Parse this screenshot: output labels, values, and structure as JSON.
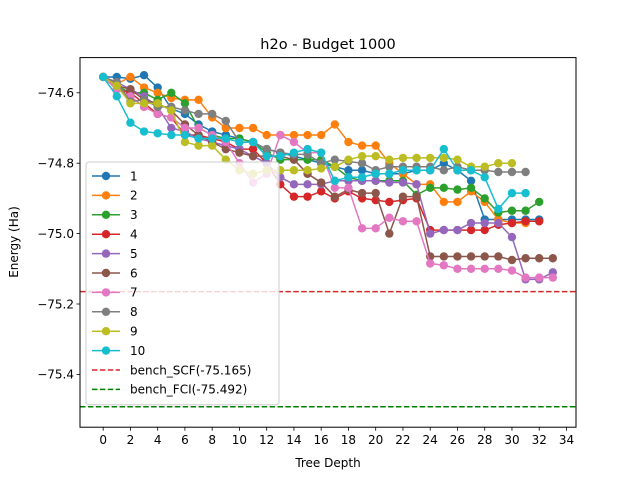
{
  "chart_data": {
    "type": "line",
    "title": "h2o - Budget  1000",
    "xlabel": "Tree Depth",
    "ylabel": "Energy (Ha)",
    "xlim": [
      -1.7,
      34.7
    ],
    "ylim": [
      -75.55,
      -74.5
    ],
    "xticks": [
      0,
      2,
      4,
      6,
      8,
      10,
      12,
      14,
      16,
      18,
      20,
      22,
      24,
      26,
      28,
      30,
      32,
      34
    ],
    "xtick_labels": [
      "0",
      "2",
      "4",
      "6",
      "8",
      "10",
      "12",
      "14",
      "16",
      "18",
      "20",
      "22",
      "24",
      "26",
      "28",
      "30",
      "32",
      "34"
    ],
    "yticks": [
      -74.6,
      -74.8,
      -75.0,
      -75.2,
      -75.4
    ],
    "ytick_labels": [
      "−74.6",
      "−74.8",
      "−75.0",
      "−75.2",
      "−75.4"
    ],
    "grid": false,
    "legend_position": "lower-left",
    "series": [
      {
        "name": "1",
        "color": "#1f77b4",
        "y": [
          -74.555,
          -74.555,
          -74.56,
          -74.55,
          -74.585,
          -74.645,
          -74.66,
          -74.69,
          -74.71,
          -74.72,
          -74.73,
          -74.74,
          -74.76,
          -74.77,
          -74.78,
          -74.79,
          -74.8,
          -74.81,
          -74.82,
          -74.82,
          -74.83,
          -74.83,
          -74.83,
          -74.82,
          -74.82,
          -74.8,
          -74.82,
          -74.85,
          -74.96,
          -74.96,
          -74.96,
          -74.96,
          -74.96
        ]
      },
      {
        "name": "2",
        "color": "#ff7f0e",
        "y": [
          -74.555,
          -74.575,
          -74.555,
          -74.585,
          -74.6,
          -74.615,
          -74.62,
          -74.62,
          -74.67,
          -74.7,
          -74.7,
          -74.7,
          -74.72,
          -74.72,
          -74.72,
          -74.72,
          -74.72,
          -74.69,
          -74.74,
          -74.75,
          -74.75,
          -74.8,
          -74.83,
          -74.86,
          -74.86,
          -74.91,
          -74.91,
          -74.88,
          -74.91,
          -74.96,
          -74.97,
          -74.97
        ]
      },
      {
        "name": "3",
        "color": "#2ca02c",
        "y": [
          -74.555,
          -74.58,
          -74.6,
          -74.6,
          -74.62,
          -74.6,
          -74.63,
          -74.7,
          -74.72,
          -74.73,
          -74.73,
          -74.74,
          -74.77,
          -74.79,
          -74.79,
          -74.79,
          -74.79,
          -74.81,
          -74.84,
          -74.85,
          -74.85,
          -74.85,
          -74.85,
          -74.89,
          -74.87,
          -74.87,
          -74.875,
          -74.87,
          -74.9,
          -74.94,
          -74.935,
          -74.935,
          -74.91
        ]
      },
      {
        "name": "4",
        "color": "#d62728",
        "y": [
          -74.555,
          -74.59,
          -74.6,
          -74.63,
          -74.66,
          -74.67,
          -74.72,
          -74.72,
          -74.73,
          -74.74,
          -74.76,
          -74.76,
          -74.8,
          -74.86,
          -74.895,
          -74.895,
          -74.88,
          -74.9,
          -74.88,
          -74.9,
          -74.905,
          -74.91,
          -74.905,
          -74.9,
          -74.99,
          -74.99,
          -74.99,
          -74.99,
          -74.99,
          -74.975,
          -74.97,
          -74.965,
          -74.965
        ]
      },
      {
        "name": "5",
        "color": "#9467bd",
        "y": [
          -74.555,
          -74.57,
          -74.59,
          -74.61,
          -74.64,
          -74.7,
          -74.71,
          -74.73,
          -74.74,
          -74.75,
          -74.76,
          -74.78,
          -74.8,
          -74.84,
          -74.86,
          -74.86,
          -74.86,
          -74.85,
          -74.85,
          -74.85,
          -74.85,
          -74.855,
          -74.855,
          -74.86,
          -75.0,
          -74.99,
          -74.99,
          -74.97,
          -74.97,
          -74.97,
          -75.01,
          -75.13,
          -75.13,
          -75.11
        ]
      },
      {
        "name": "6",
        "color": "#8c564b",
        "y": [
          -74.555,
          -74.58,
          -74.59,
          -74.62,
          -74.63,
          -74.65,
          -74.69,
          -74.72,
          -74.74,
          -74.76,
          -74.77,
          -74.78,
          -74.78,
          -74.78,
          -74.79,
          -74.83,
          -74.855,
          -74.895,
          -74.875,
          -74.885,
          -74.885,
          -75.0,
          -74.895,
          -74.895,
          -75.065,
          -75.065,
          -75.065,
          -75.065,
          -75.065,
          -75.065,
          -75.075,
          -75.07,
          -75.07,
          -75.07
        ]
      },
      {
        "name": "7",
        "color": "#e377c2",
        "y": [
          -74.555,
          -74.59,
          -74.61,
          -74.64,
          -74.66,
          -74.67,
          -74.7,
          -74.7,
          -74.72,
          -74.74,
          -74.8,
          -74.855,
          -74.83,
          -74.72,
          -74.74,
          -74.77,
          -74.77,
          -74.87,
          -74.87,
          -74.985,
          -74.985,
          -74.955,
          -74.965,
          -74.965,
          -75.085,
          -75.09,
          -75.1,
          -75.1,
          -75.1,
          -75.1,
          -75.105,
          -75.125,
          -75.125,
          -75.125
        ]
      },
      {
        "name": "8",
        "color": "#7f7f7f",
        "y": [
          -74.555,
          -74.57,
          -74.625,
          -74.62,
          -74.64,
          -74.64,
          -74.65,
          -74.66,
          -74.66,
          -74.68,
          -74.74,
          -74.74,
          -74.76,
          -74.77,
          -74.775,
          -74.775,
          -74.8,
          -74.79,
          -74.795,
          -74.8,
          -74.82,
          -74.81,
          -74.81,
          -74.81,
          -74.81,
          -74.82,
          -74.81,
          -74.82,
          -74.82,
          -74.825,
          -74.825,
          -74.825
        ]
      },
      {
        "name": "9",
        "color": "#bcbd22",
        "y": [
          -74.555,
          -74.58,
          -74.63,
          -74.63,
          -74.63,
          -74.65,
          -74.74,
          -74.75,
          -74.75,
          -74.79,
          -74.82,
          -74.83,
          -74.82,
          -74.82,
          -74.82,
          -74.82,
          -74.815,
          -74.81,
          -74.79,
          -74.78,
          -74.78,
          -74.79,
          -74.785,
          -74.785,
          -74.785,
          -74.785,
          -74.79,
          -74.81,
          -74.81,
          -74.8,
          -74.8
        ]
      },
      {
        "name": "10",
        "color": "#17becf",
        "y": [
          -74.555,
          -74.61,
          -74.685,
          -74.71,
          -74.715,
          -74.72,
          -74.72,
          -74.73,
          -74.73,
          -74.73,
          -74.74,
          -74.74,
          -74.78,
          -74.78,
          -74.77,
          -74.76,
          -74.77,
          -74.85,
          -74.84,
          -74.84,
          -74.83,
          -74.83,
          -74.82,
          -74.82,
          -74.82,
          -74.76,
          -74.82,
          -74.82,
          -74.84,
          -74.93,
          -74.885,
          -74.885
        ]
      }
    ],
    "reference_lines": [
      {
        "name": "bench_SCF(-75.165)",
        "y": -75.165,
        "color": "#d62728"
      },
      {
        "name": "bench_FCI(-75.492)",
        "y": -75.492,
        "color": "#008000"
      }
    ]
  }
}
